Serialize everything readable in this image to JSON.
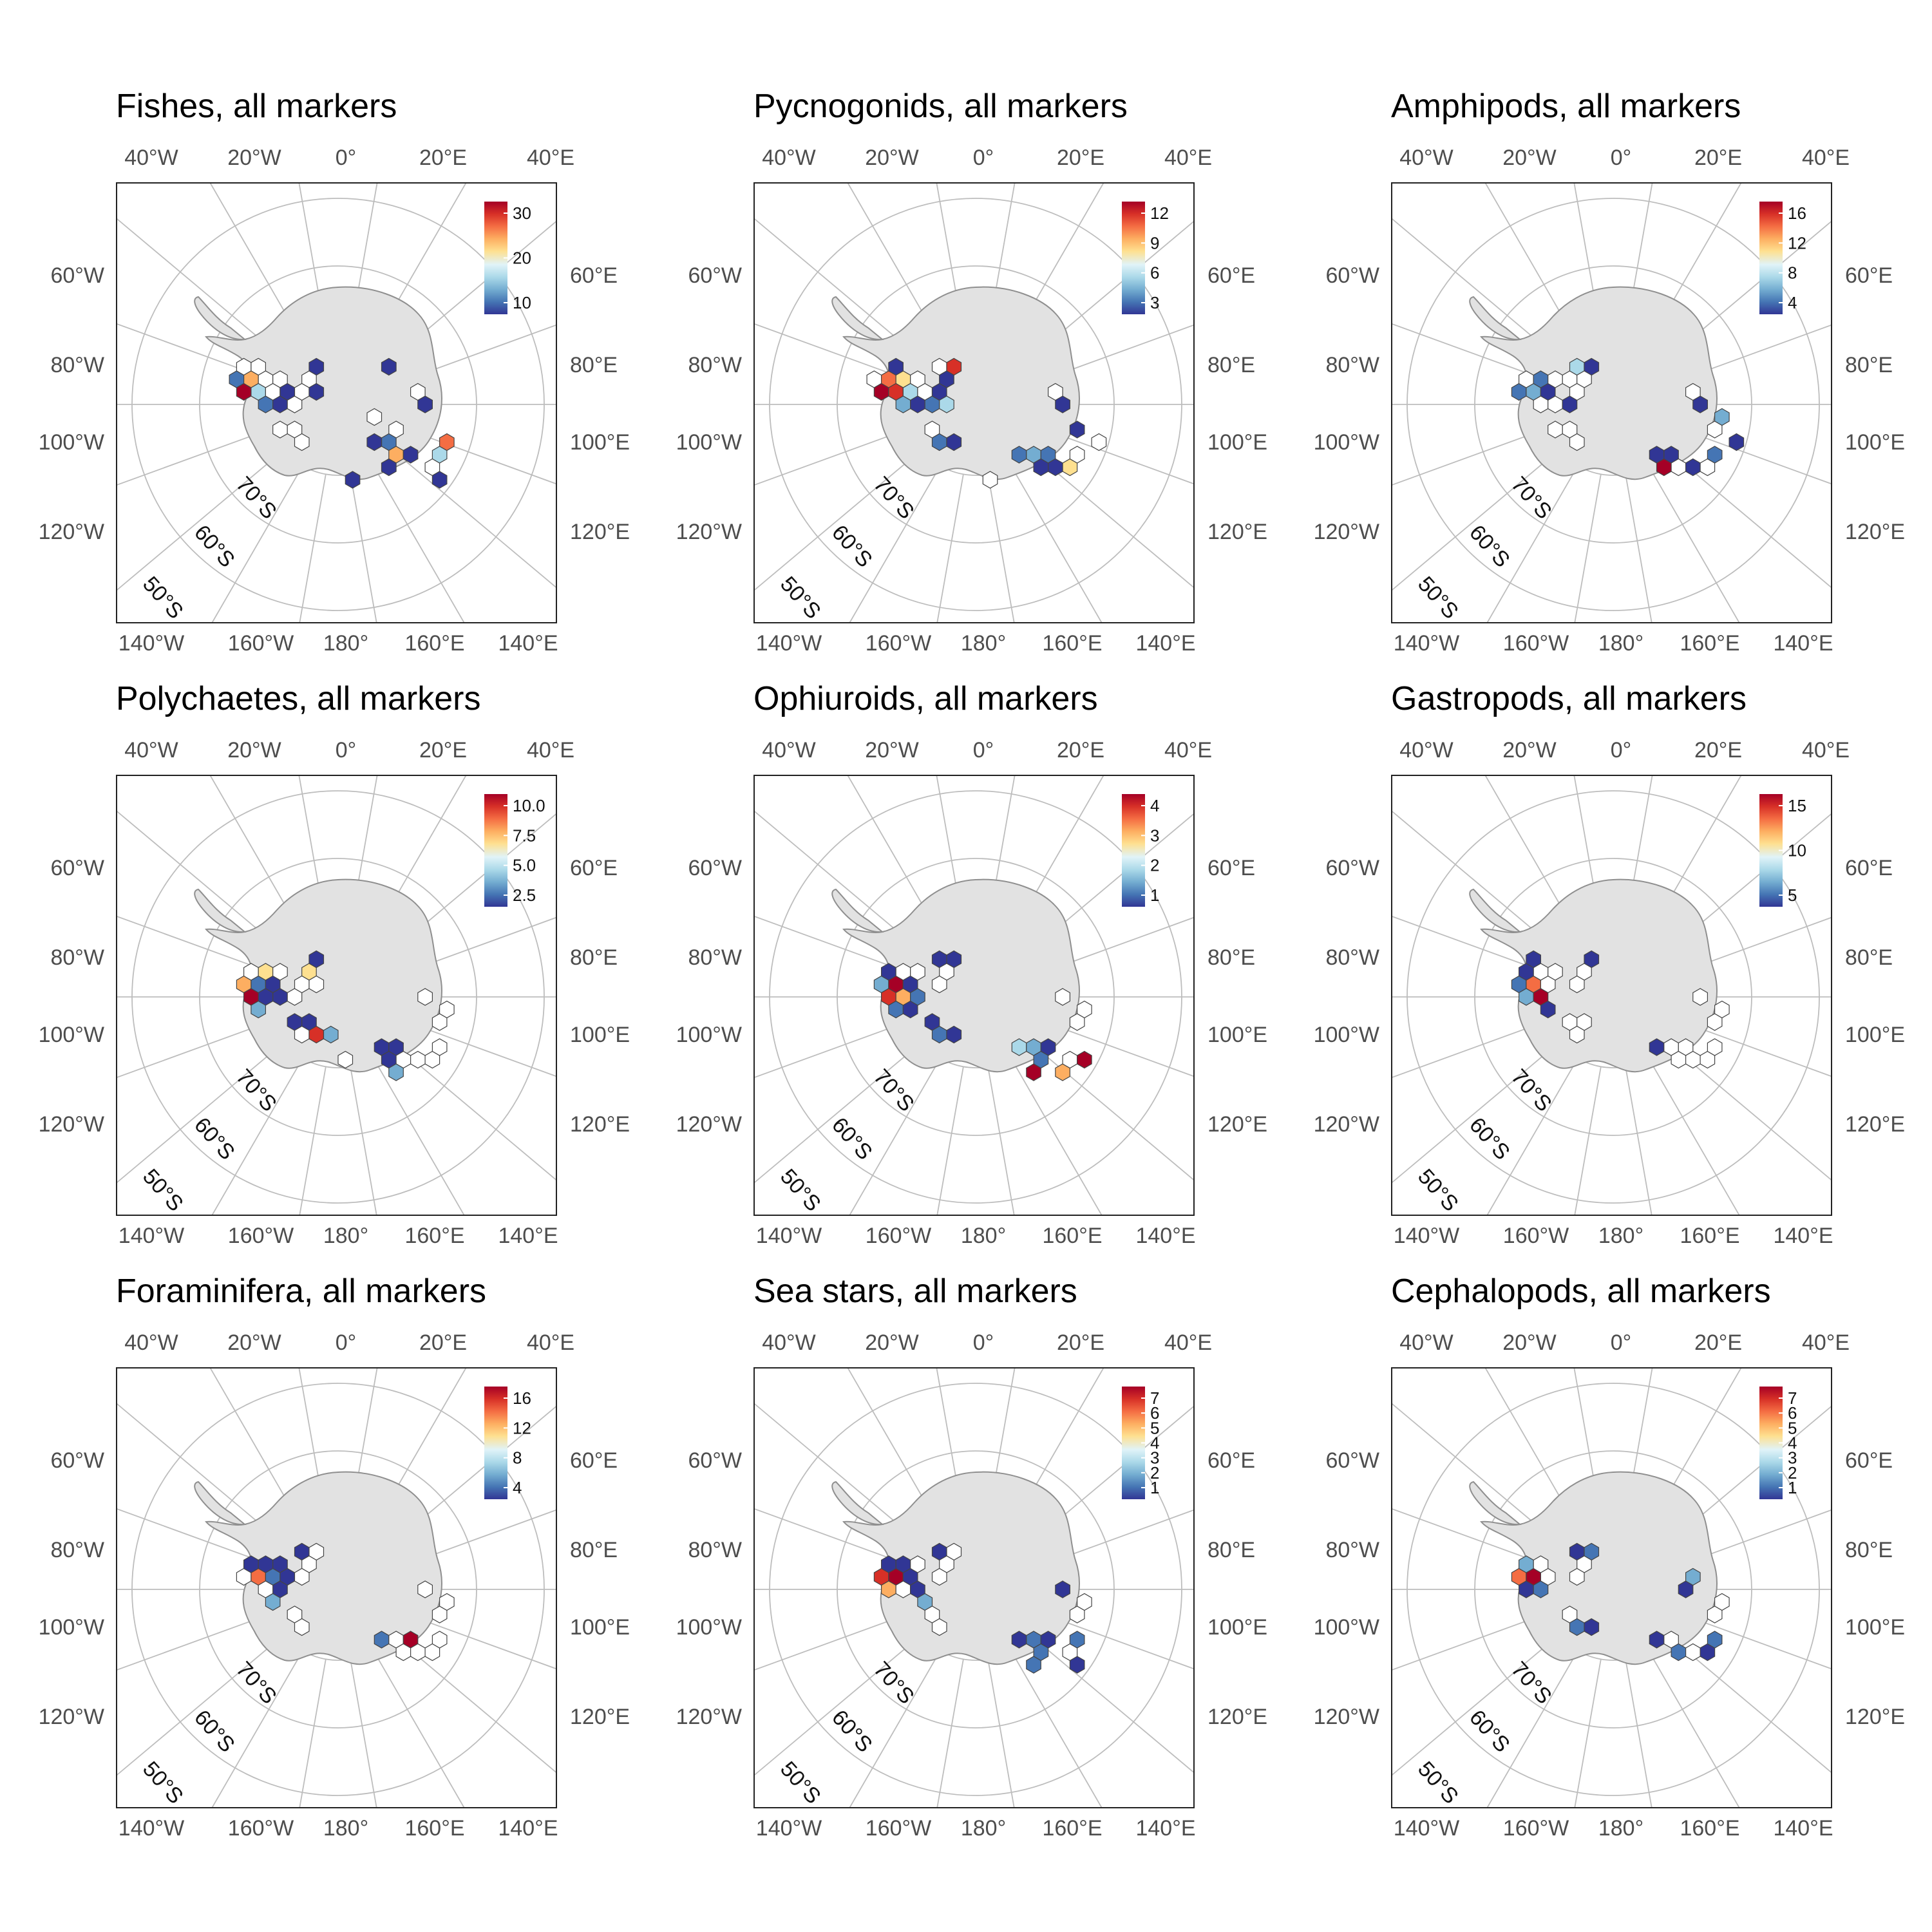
{
  "labels": {
    "top_lon": [
      "40°W",
      "20°W",
      "0°",
      "20°E",
      "40°E"
    ],
    "bottom_lon": [
      "140°W",
      "160°W",
      "180°",
      "160°E",
      "140°E"
    ],
    "left_lon": [
      "60°W",
      "80°W",
      "100°W",
      "120°W"
    ],
    "right_lon": [
      "60°E",
      "80°E",
      "100°E",
      "120°E"
    ],
    "lat": [
      "70°S",
      "60°S",
      "50°S"
    ]
  },
  "colors": {
    "land": "#e2e2e2",
    "coast": "#8f8f8f",
    "graticule": "#bdbdbd",
    "scale": [
      "#313695",
      "#4575b4",
      "#74add1",
      "#abd9e9",
      "#e0f3f8",
      "#fee090",
      "#fdae61",
      "#f46d43",
      "#d73027",
      "#a50026"
    ]
  },
  "panels": [
    {
      "title": "Fishes, all markers",
      "legend_ticks": [
        "30",
        "20",
        "10"
      ]
    },
    {
      "title": "Pycnogonids, all markers",
      "legend_ticks": [
        "12",
        "9",
        "6",
        "3"
      ]
    },
    {
      "title": "Amphipods, all markers",
      "legend_ticks": [
        "16",
        "12",
        "8",
        "4"
      ]
    },
    {
      "title": "Polychaetes, all markers",
      "legend_ticks": [
        "10.0",
        "7.5",
        "5.0",
        "2.5"
      ]
    },
    {
      "title": "Ophiuroids, all markers",
      "legend_ticks": [
        "4",
        "3",
        "2",
        "1"
      ]
    },
    {
      "title": "Gastropods, all markers",
      "legend_ticks": [
        "15",
        "10",
        "5"
      ]
    },
    {
      "title": "Foraminifera, all markers",
      "legend_ticks": [
        "16",
        "12",
        "8",
        "4"
      ]
    },
    {
      "title": "Sea stars, all markers",
      "legend_ticks": [
        "7",
        "6",
        "5",
        "4",
        "3",
        "2",
        "1"
      ]
    },
    {
      "title": "Cephalopods, all markers",
      "legend_ticks": [
        "7",
        "6",
        "5",
        "4",
        "3",
        "2",
        "1"
      ]
    }
  ]
}
